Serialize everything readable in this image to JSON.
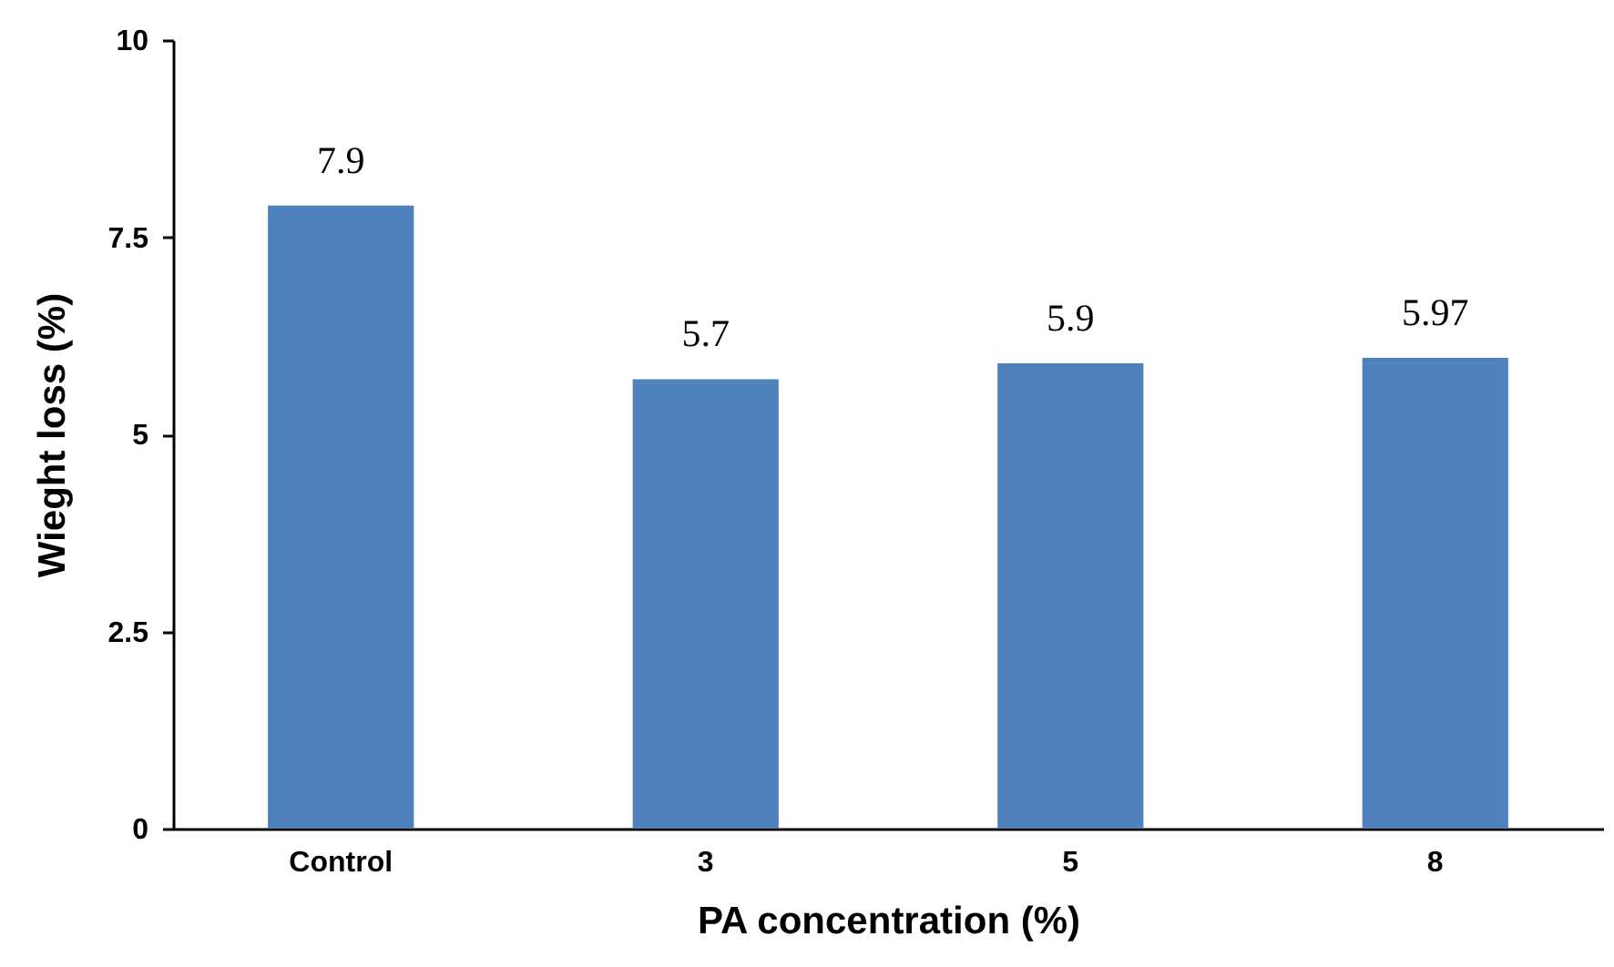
{
  "chart_data": {
    "type": "bar",
    "xlabel": "PA concentration (%)",
    "ylabel": "Wieght loss (%)",
    "categories": [
      "Control",
      "3",
      "5",
      "8"
    ],
    "values": [
      7.9,
      5.7,
      5.9,
      5.97
    ],
    "color": "#4f81bd",
    "ylim": [
      0,
      10
    ],
    "yticks": [
      0,
      2.5,
      5,
      7.5,
      10
    ],
    "grid": false,
    "data_labels": true
  }
}
